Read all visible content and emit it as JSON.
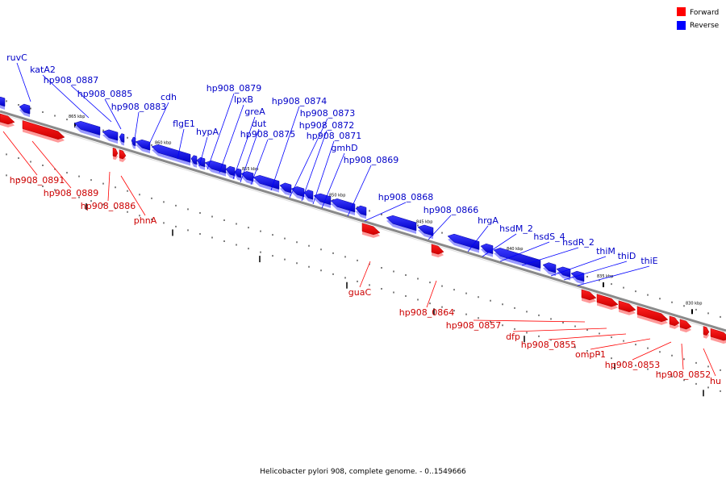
{
  "caption": "Helicobacter pylori 908, complete genome. - 0..1549666",
  "legend": {
    "forward": {
      "label": "Forward",
      "color": "#ff0000"
    },
    "reverse": {
      "label": "Reverse",
      "color": "#0000ff"
    }
  },
  "ticks": [
    "865 kbp",
    "860 kbp",
    "855 kbp",
    "850 kbp",
    "845 kbp",
    "840 kbp",
    "835 kbp",
    "830 kbp"
  ],
  "reverse_genes": [
    "ruvC",
    "katA2",
    "hp908_0887",
    "hp908_0885",
    "hp908_0883",
    "cdh",
    "flgE1",
    "hypA",
    "hp908_0879",
    "lpxB",
    "greA",
    "dut",
    "hp908_0875",
    "hp908_0874",
    "hp908_0873",
    "hp908_0872",
    "hp908_0871",
    "gmhD",
    "hp908_0869",
    "hp908_0868",
    "hp908_0866",
    "hrgA",
    "hsdM_2",
    "hsdS_4",
    "hsdR_2",
    "thiM",
    "thiD",
    "thiE"
  ],
  "forward_genes": [
    "hp908_0891",
    "hp908_0889",
    "hp908_0886",
    "phnA",
    "guaC",
    "hp908_0864",
    "hp908_0857",
    "dfp",
    "hp908_0855",
    "ompP1",
    "hp908_0853",
    "hp908_0852",
    "hu"
  ]
}
